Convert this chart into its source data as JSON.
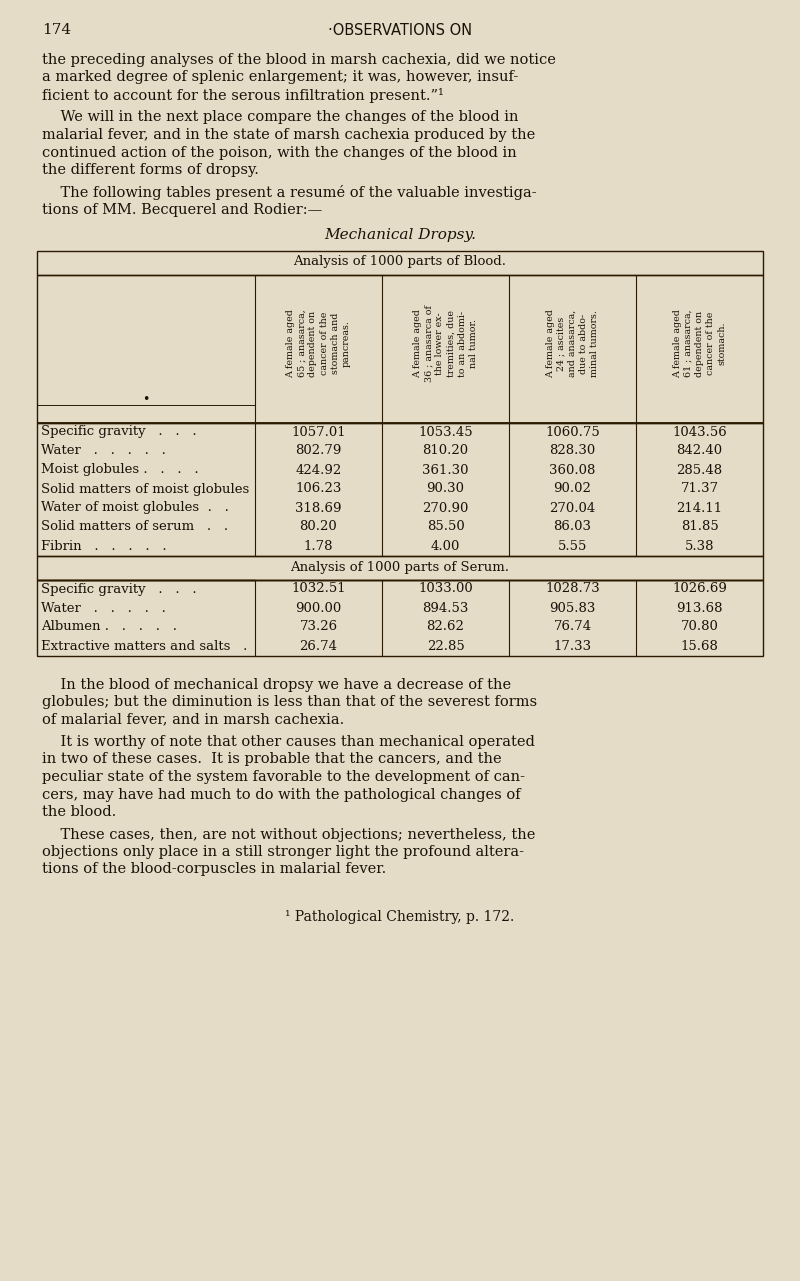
{
  "page_number": "174",
  "header": "·OBSERVATIONS ON",
  "bg_color": "#e5dcc8",
  "text_color": "#1a1208",
  "lines1": [
    "the preceding analyses of the blood in marsh cachexia, did we notice",
    "a marked degree of splenic enlargement; it was, however, insuf-",
    "ficient to account for the serous infiltration present.”¹"
  ],
  "lines2": [
    "    We will in the next place compare the changes of the blood in",
    "malarial fever, and in the state of marsh cachexia produced by the",
    "continued action of the poison, with the changes of the blood in",
    "the different forms of dropsy."
  ],
  "lines3": [
    "    The following tables present a resumé of the valuable investiga-",
    "tions of MM. Becquerel and Rodier:—"
  ],
  "table_title": "Mechanical Dropsy.",
  "table1_header": "Analysis of 1000 parts of Blood.",
  "col_headers": [
    "A female aged\n65 ; anasarca,\ndependent on\ncancer of the\nstomach and\npancreas.",
    "A female aged\n36 ; anasarca of\nthe lower ex-\ntremities, due\nto an abdomi-\nnal tumor.",
    "A female aged\n24 ; ascites\nand anasarca,\ndue to abdo-\nminal tumors.",
    "A female aged\n61 ; anasarca,\ndependent on\ncancer of the\nstomach."
  ],
  "blood_rows": [
    [
      "Specific gravity   .   .   .",
      "1057.01",
      "1053.45",
      "1060.75",
      "1043.56"
    ],
    [
      "Water   .   .   .   .   .",
      "802.79",
      "810.20",
      "828.30",
      "842.40"
    ],
    [
      "Moist globules .   .   .   .",
      "424.92",
      "361.30",
      "360.08",
      "285.48"
    ],
    [
      "Solid matters of moist globules",
      "106.23",
      "90.30",
      "90.02",
      "71.37"
    ],
    [
      "Water of moist globules  .   .",
      "318.69",
      "270.90",
      "270.04",
      "214.11"
    ],
    [
      "Solid matters of serum   .   .",
      "80.20",
      "85.50",
      "86.03",
      "81.85"
    ],
    [
      "Fibrin   .   .   .   .   .",
      "1.78",
      "4.00",
      "5.55",
      "5.38"
    ]
  ],
  "table2_header": "Analysis of 1000 parts of Serum.",
  "serum_rows": [
    [
      "Specific gravity   .   .   .",
      "1032.51",
      "1033.00",
      "1028.73",
      "1026.69"
    ],
    [
      "Water   .   .   .   .   .",
      "900.00",
      "894.53",
      "905.83",
      "913.68"
    ],
    [
      "Albumen .   .   .   .   .",
      "73.26",
      "82.62",
      "76.74",
      "70.80"
    ],
    [
      "Extractive matters and salts   .",
      "26.74",
      "22.85",
      "17.33",
      "15.68"
    ]
  ],
  "lines4": [
    "    In the blood of mechanical dropsy we have a decrease of the",
    "globules; but the diminution is less than that of the severest forms",
    "of malarial fever, and in marsh cachexia."
  ],
  "lines5": [
    "    It is worthy of note that other causes than mechanical operated",
    "in two of these cases.  It is probable that the cancers, and the",
    "peculiar state of the system favorable to the development of can-",
    "cers, may have had much to do with the pathological changes of",
    "the blood."
  ],
  "lines6": [
    "    These cases, then, are not without objections; nevertheless, the",
    "objections only place in a still stronger light the profound altera-",
    "tions of the blood-corpuscles in malarial fever."
  ],
  "footnote": "¹ Pathological Chemistry, p. 172."
}
